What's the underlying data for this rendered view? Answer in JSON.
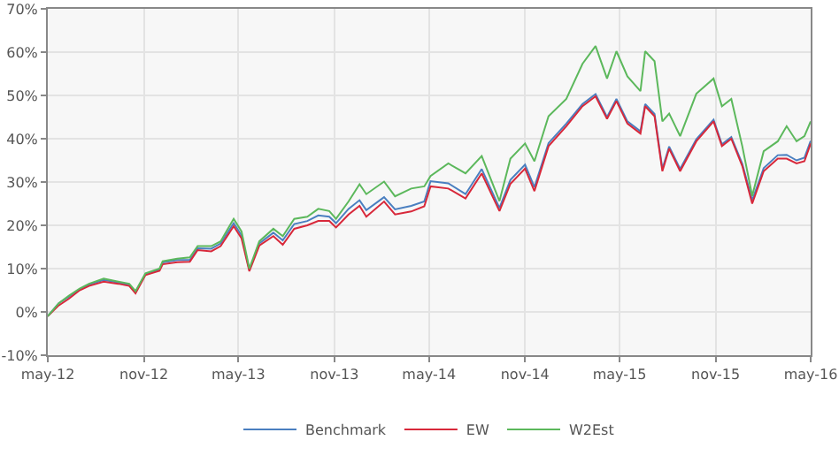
{
  "chart_data": {
    "type": "line",
    "x": [
      "2012-05-01",
      "2012-05-22",
      "2012-06-10",
      "2012-07-01",
      "2012-07-19",
      "2012-08-16",
      "2012-09-13",
      "2012-10-04",
      "2012-10-16",
      "2012-11-04",
      "2012-12-01",
      "2012-12-07",
      "2013-01-04",
      "2013-01-28",
      "2013-02-12",
      "2013-03-10",
      "2013-03-28",
      "2013-04-22",
      "2013-05-07",
      "2013-05-22",
      "2013-06-10",
      "2013-07-07",
      "2013-07-25",
      "2013-08-16",
      "2013-09-10",
      "2013-10-01",
      "2013-10-22",
      "2013-11-04",
      "2013-11-28",
      "2013-12-19",
      "2014-01-01",
      "2014-02-04",
      "2014-02-25",
      "2014-03-28",
      "2014-04-22",
      "2014-05-04",
      "2014-06-07",
      "2014-07-10",
      "2014-08-10",
      "2014-09-13",
      "2014-10-04",
      "2014-11-01",
      "2014-11-19",
      "2014-12-16",
      "2015-01-19",
      "2015-02-19",
      "2015-03-16",
      "2015-04-07",
      "2015-04-25",
      "2015-05-16",
      "2015-06-10",
      "2015-06-19",
      "2015-07-07",
      "2015-07-22",
      "2015-08-04",
      "2015-08-25",
      "2015-09-25",
      "2015-10-28",
      "2015-11-13",
      "2015-12-01",
      "2015-12-22",
      "2016-01-10",
      "2016-02-01",
      "2016-02-28",
      "2016-03-16",
      "2016-04-04",
      "2016-04-19",
      "2016-05-01"
    ],
    "series": [
      {
        "name": "Benchmark",
        "color": "#4a7fc0",
        "values": [
          -1,
          2,
          3.5,
          5.2,
          6.3,
          7.4,
          6.8,
          6.3,
          4.6,
          8.7,
          9.8,
          11.4,
          12,
          12,
          14.7,
          14.6,
          15.8,
          20.5,
          17.7,
          9.7,
          15.8,
          18.3,
          16.5,
          20.3,
          21,
          22.3,
          22,
          20.5,
          23.8,
          25.8,
          23.5,
          26.5,
          23.7,
          24.5,
          25.5,
          30.2,
          29.7,
          27.2,
          33,
          24,
          30.5,
          34,
          28.8,
          39,
          43.5,
          48,
          50.3,
          45,
          49.2,
          44,
          41.7,
          48,
          45.7,
          33,
          38.2,
          33,
          39.9,
          44.4,
          38.7,
          40.4,
          34.2,
          25.8,
          33.2,
          36.2,
          36.3,
          35,
          35.6,
          39.5
        ]
      },
      {
        "name": "EW",
        "color": "#d8283a",
        "values": [
          -1,
          1.5,
          3,
          5,
          6,
          7,
          6.5,
          6,
          4.3,
          8.5,
          9.5,
          11,
          11.5,
          11.6,
          14.3,
          14,
          15.2,
          19.8,
          17,
          9.4,
          15.3,
          17.5,
          15.5,
          19.2,
          20,
          21,
          21,
          19.5,
          22.5,
          24.5,
          22,
          25.5,
          22.5,
          23.2,
          24.4,
          29,
          28.5,
          26.2,
          32,
          23.3,
          29.6,
          33.1,
          27.9,
          38.3,
          42.9,
          47.5,
          49.8,
          44.6,
          48.7,
          43.5,
          41.2,
          47.5,
          45.2,
          32.5,
          37.7,
          32.5,
          39.4,
          44,
          38.3,
          40,
          33.7,
          25,
          32.5,
          35.4,
          35.4,
          34.3,
          34.8,
          38.9
        ]
      },
      {
        "name": "W2Est",
        "color": "#5cb85c",
        "values": [
          -1,
          2,
          3.7,
          5.4,
          6.5,
          7.7,
          7,
          6.5,
          4.8,
          8.9,
          10,
          11.7,
          12.3,
          12.6,
          15.2,
          15.2,
          16.3,
          21.5,
          18.6,
          10,
          16.3,
          19.2,
          17.5,
          21.5,
          22,
          23.8,
          23.3,
          21.5,
          25.5,
          29.5,
          27.2,
          30.1,
          26.7,
          28.5,
          29,
          31.4,
          34.3,
          32,
          36,
          25.6,
          35.4,
          38.9,
          34.8,
          45.2,
          49.2,
          57.3,
          61.4,
          53.9,
          60.2,
          54.4,
          51,
          60.2,
          57.9,
          44,
          45.8,
          40.6,
          50.4,
          53.9,
          47.5,
          49.2,
          38.3,
          26.8,
          37.1,
          39.4,
          42.9,
          39.4,
          40.6,
          44
        ]
      }
    ],
    "xlim": [
      "2012-05-01",
      "2016-05-01"
    ],
    "xticks": [
      {
        "value": "2012-05-01",
        "label": "may-12"
      },
      {
        "value": "2012-11-01",
        "label": "nov-12"
      },
      {
        "value": "2013-05-01",
        "label": "may-13"
      },
      {
        "value": "2013-11-01",
        "label": "nov-13"
      },
      {
        "value": "2014-05-01",
        "label": "may-14"
      },
      {
        "value": "2014-11-01",
        "label": "nov-14"
      },
      {
        "value": "2015-05-01",
        "label": "may-15"
      },
      {
        "value": "2015-11-01",
        "label": "nov-15"
      },
      {
        "value": "2016-05-01",
        "label": "may-16"
      }
    ],
    "ylim": [
      -10,
      70
    ],
    "yticks": [
      {
        "value": -10,
        "label": "-10%"
      },
      {
        "value": 0,
        "label": "0%"
      },
      {
        "value": 10,
        "label": "10%"
      },
      {
        "value": 20,
        "label": "20%"
      },
      {
        "value": 30,
        "label": "30%"
      },
      {
        "value": 40,
        "label": "40%"
      },
      {
        "value": 50,
        "label": "50%"
      },
      {
        "value": 60,
        "label": "60%"
      },
      {
        "value": 70,
        "label": "70%"
      }
    ],
    "grid": true,
    "legend": "bottom",
    "marker": "none",
    "line_style": "solid"
  }
}
